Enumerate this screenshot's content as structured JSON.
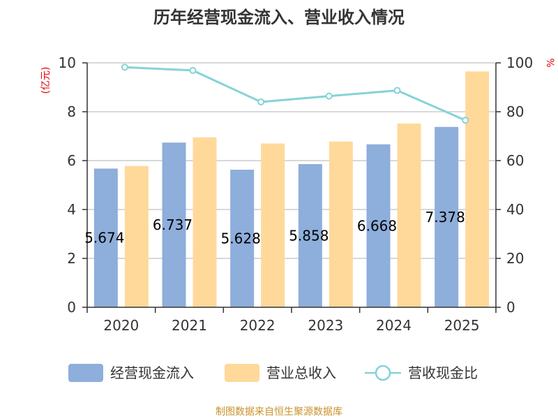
{
  "chart_data": {
    "type": "bar",
    "title": "历年经营现金流入、营业收入情况",
    "categories": [
      "2020",
      "2021",
      "2022",
      "2023",
      "2024",
      "2025"
    ],
    "y_left": {
      "unit_label": "(亿元)",
      "range": [
        0,
        10
      ],
      "ticks": [
        "0",
        "2",
        "4",
        "6",
        "8",
        "10"
      ]
    },
    "y_right": {
      "unit_label": "%",
      "range": [
        0,
        100
      ],
      "ticks": [
        "0",
        "20",
        "40",
        "60",
        "80",
        "100"
      ]
    },
    "series": [
      {
        "name": "经营现金流入",
        "type": "bar",
        "axis": "left",
        "color": "#8eaedb",
        "values": [
          5.674,
          6.737,
          5.628,
          5.858,
          6.668,
          7.378
        ],
        "labels": [
          "5.674",
          "6.737",
          "5.628",
          "5.858",
          "6.668",
          "7.378"
        ]
      },
      {
        "name": "营业总收入",
        "type": "bar",
        "axis": "left",
        "color": "#ffd99a",
        "values": [
          5.78,
          6.95,
          6.7,
          6.78,
          7.52,
          9.65
        ]
      },
      {
        "name": "营收现金比",
        "type": "line",
        "axis": "right",
        "color": "#85d3d6",
        "values": [
          98.2,
          96.9,
          84.0,
          86.4,
          88.7,
          76.5
        ]
      }
    ],
    "grid": true,
    "legend_position": "bottom"
  },
  "source_text": "制图数据来自恒生聚源数据库"
}
